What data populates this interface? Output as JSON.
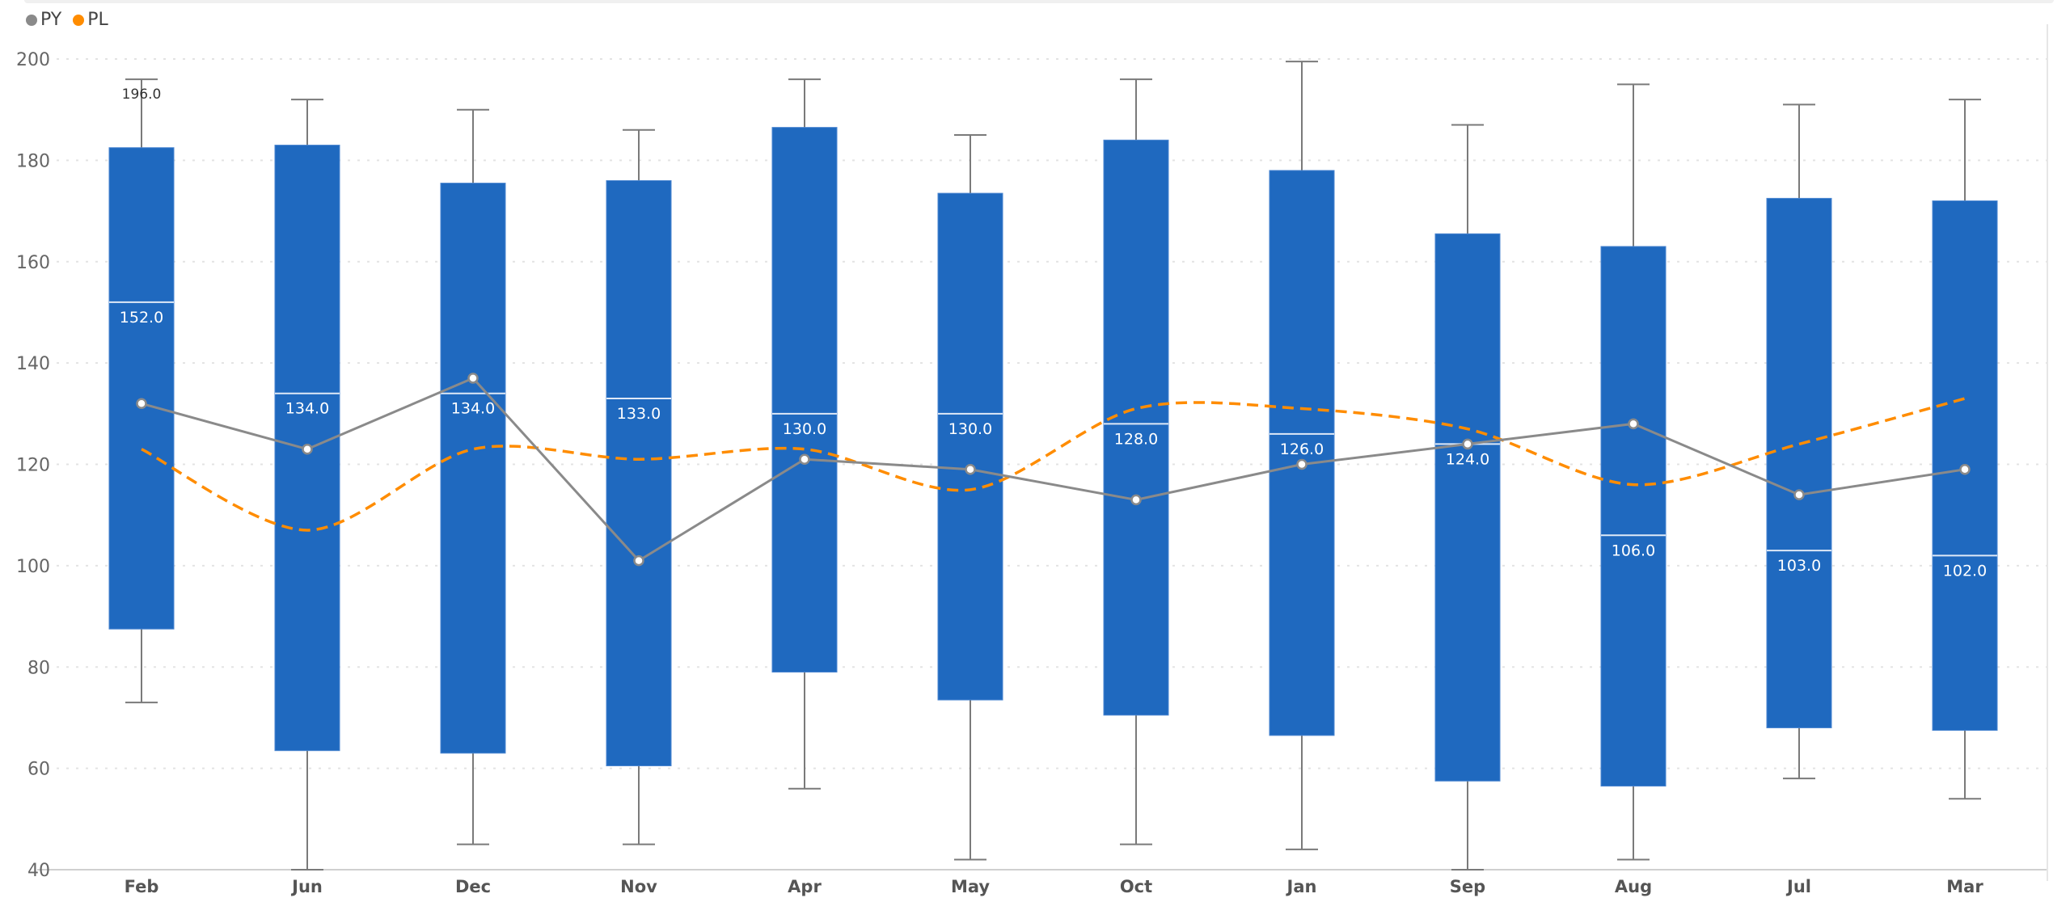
{
  "chart_data": {
    "type": "boxplot",
    "title": "",
    "xlabel": "",
    "ylabel": "",
    "ylim": [
      40,
      200
    ],
    "yticks": [
      40,
      60,
      80,
      100,
      120,
      140,
      160,
      180,
      200
    ],
    "grid": true,
    "legend_position": "top-left",
    "categories": [
      "Feb",
      "Jun",
      "Dec",
      "Nov",
      "Apr",
      "May",
      "Oct",
      "Jan",
      "Sep",
      "Aug",
      "Jul",
      "Mar"
    ],
    "boxes": {
      "min": [
        73,
        40,
        45,
        45,
        56,
        42,
        45,
        44,
        40,
        42,
        58,
        54
      ],
      "q1": [
        87.5,
        63.5,
        63,
        60.5,
        79,
        73.5,
        70.5,
        66.5,
        57.5,
        56.5,
        68,
        67.5
      ],
      "median": [
        152.0,
        134.0,
        134.0,
        133.0,
        130.0,
        130.0,
        128.0,
        126.0,
        124.0,
        106.0,
        103.0,
        102.0
      ],
      "q3": [
        182.5,
        183,
        175.5,
        176,
        186.5,
        173.5,
        184,
        178,
        165.5,
        163,
        172.5,
        172
      ],
      "max": [
        196,
        192,
        190,
        186,
        196,
        185,
        196,
        199.5,
        187,
        195,
        191,
        192
      ],
      "median_labels": [
        "152.0",
        "134.0",
        "134.0",
        "133.0",
        "130.0",
        "130.0",
        "128.0",
        "126.0",
        "124.0",
        "106.0",
        "103.0",
        "102.0"
      ],
      "max_label": "196.0",
      "color": "#1f69bf"
    },
    "series": [
      {
        "name": "PY",
        "color": "#8a8a8a",
        "style": "solid",
        "values": [
          132,
          123,
          137,
          101,
          121,
          119,
          113,
          120,
          124,
          128,
          114,
          119
        ]
      },
      {
        "name": "PL",
        "color": "#ff8c00",
        "style": "dashed",
        "values": [
          123,
          107,
          123,
          121,
          123,
          115,
          131,
          131,
          127,
          116,
          124,
          133
        ]
      }
    ]
  }
}
